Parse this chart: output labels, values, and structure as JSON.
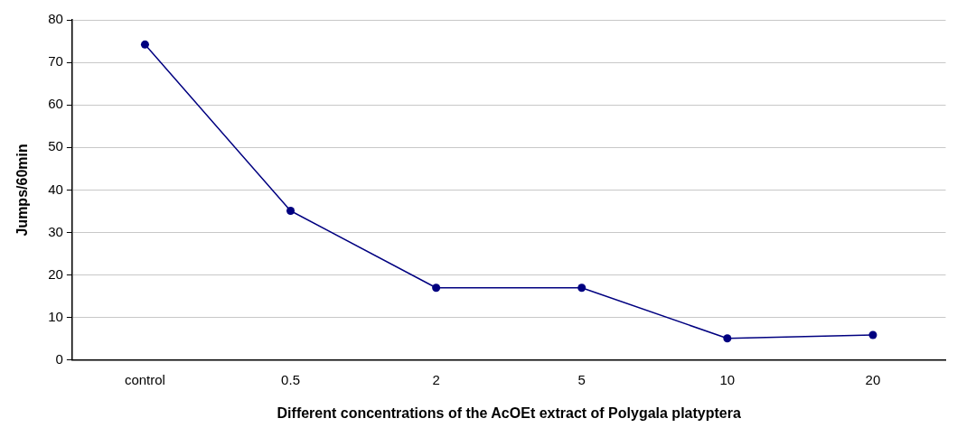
{
  "chart_data": {
    "type": "line",
    "xlabel": "Different concentrations of the AcOEt extract of Polygala platyptera",
    "ylabel": "Jumps/60min",
    "categories": [
      "control",
      "0.5",
      "2",
      "5",
      "10",
      "20"
    ],
    "series": [
      {
        "color": "#000080",
        "values": [
          74.2,
          35.1,
          17,
          17,
          5.1,
          5.9
        ]
      }
    ],
    "ylim": [
      0,
      80
    ],
    "yticks": [
      0,
      10,
      20,
      30,
      40,
      50,
      60,
      70,
      80
    ],
    "grid": "y",
    "marker": "circle",
    "line_style": "solid",
    "legend": false
  }
}
